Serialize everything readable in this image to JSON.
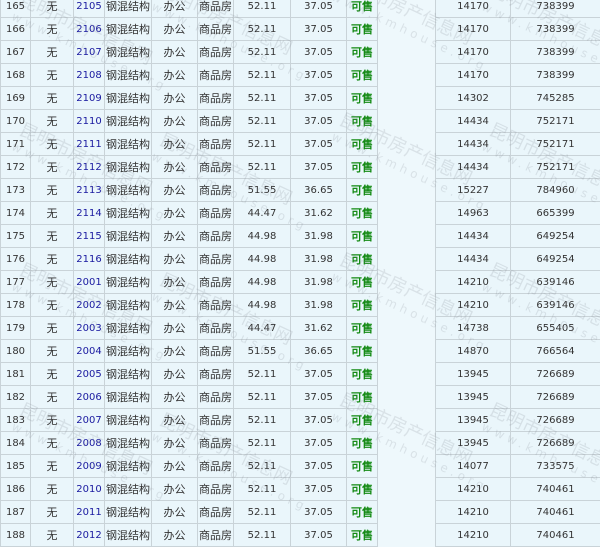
{
  "watermark": {
    "line1": "昆明市房产信息网",
    "line2": "www.kmhouse.org"
  },
  "rows": [
    {
      "no": "165",
      "floor": "无",
      "room": "2105",
      "structure": "钢混结构",
      "usage": "办公",
      "type": "商品房",
      "area": "52.11",
      "inner_area": "37.05",
      "status": "可售",
      "unit_price": "14170",
      "total": "738399"
    },
    {
      "no": "166",
      "floor": "无",
      "room": "2106",
      "structure": "钢混结构",
      "usage": "办公",
      "type": "商品房",
      "area": "52.11",
      "inner_area": "37.05",
      "status": "可售",
      "unit_price": "14170",
      "total": "738399"
    },
    {
      "no": "167",
      "floor": "无",
      "room": "2107",
      "structure": "钢混结构",
      "usage": "办公",
      "type": "商品房",
      "area": "52.11",
      "inner_area": "37.05",
      "status": "可售",
      "unit_price": "14170",
      "total": "738399"
    },
    {
      "no": "168",
      "floor": "无",
      "room": "2108",
      "structure": "钢混结构",
      "usage": "办公",
      "type": "商品房",
      "area": "52.11",
      "inner_area": "37.05",
      "status": "可售",
      "unit_price": "14170",
      "total": "738399"
    },
    {
      "no": "169",
      "floor": "无",
      "room": "2109",
      "structure": "钢混结构",
      "usage": "办公",
      "type": "商品房",
      "area": "52.11",
      "inner_area": "37.05",
      "status": "可售",
      "unit_price": "14302",
      "total": "745285"
    },
    {
      "no": "170",
      "floor": "无",
      "room": "2110",
      "structure": "钢混结构",
      "usage": "办公",
      "type": "商品房",
      "area": "52.11",
      "inner_area": "37.05",
      "status": "可售",
      "unit_price": "14434",
      "total": "752171"
    },
    {
      "no": "171",
      "floor": "无",
      "room": "2111",
      "structure": "钢混结构",
      "usage": "办公",
      "type": "商品房",
      "area": "52.11",
      "inner_area": "37.05",
      "status": "可售",
      "unit_price": "14434",
      "total": "752171"
    },
    {
      "no": "172",
      "floor": "无",
      "room": "2112",
      "structure": "钢混结构",
      "usage": "办公",
      "type": "商品房",
      "area": "52.11",
      "inner_area": "37.05",
      "status": "可售",
      "unit_price": "14434",
      "total": "752171"
    },
    {
      "no": "173",
      "floor": "无",
      "room": "2113",
      "structure": "钢混结构",
      "usage": "办公",
      "type": "商品房",
      "area": "51.55",
      "inner_area": "36.65",
      "status": "可售",
      "unit_price": "15227",
      "total": "784960"
    },
    {
      "no": "174",
      "floor": "无",
      "room": "2114",
      "structure": "钢混结构",
      "usage": "办公",
      "type": "商品房",
      "area": "44.47",
      "inner_area": "31.62",
      "status": "可售",
      "unit_price": "14963",
      "total": "665399"
    },
    {
      "no": "175",
      "floor": "无",
      "room": "2115",
      "structure": "钢混结构",
      "usage": "办公",
      "type": "商品房",
      "area": "44.98",
      "inner_area": "31.98",
      "status": "可售",
      "unit_price": "14434",
      "total": "649254"
    },
    {
      "no": "176",
      "floor": "无",
      "room": "2116",
      "structure": "钢混结构",
      "usage": "办公",
      "type": "商品房",
      "area": "44.98",
      "inner_area": "31.98",
      "status": "可售",
      "unit_price": "14434",
      "total": "649254"
    },
    {
      "no": "177",
      "floor": "无",
      "room": "2001",
      "structure": "钢混结构",
      "usage": "办公",
      "type": "商品房",
      "area": "44.98",
      "inner_area": "31.98",
      "status": "可售",
      "unit_price": "14210",
      "total": "639146"
    },
    {
      "no": "178",
      "floor": "无",
      "room": "2002",
      "structure": "钢混结构",
      "usage": "办公",
      "type": "商品房",
      "area": "44.98",
      "inner_area": "31.98",
      "status": "可售",
      "unit_price": "14210",
      "total": "639146"
    },
    {
      "no": "179",
      "floor": "无",
      "room": "2003",
      "structure": "钢混结构",
      "usage": "办公",
      "type": "商品房",
      "area": "44.47",
      "inner_area": "31.62",
      "status": "可售",
      "unit_price": "14738",
      "total": "655405"
    },
    {
      "no": "180",
      "floor": "无",
      "room": "2004",
      "structure": "钢混结构",
      "usage": "办公",
      "type": "商品房",
      "area": "51.55",
      "inner_area": "36.65",
      "status": "可售",
      "unit_price": "14870",
      "total": "766564"
    },
    {
      "no": "181",
      "floor": "无",
      "room": "2005",
      "structure": "钢混结构",
      "usage": "办公",
      "type": "商品房",
      "area": "52.11",
      "inner_area": "37.05",
      "status": "可售",
      "unit_price": "13945",
      "total": "726689"
    },
    {
      "no": "182",
      "floor": "无",
      "room": "2006",
      "structure": "钢混结构",
      "usage": "办公",
      "type": "商品房",
      "area": "52.11",
      "inner_area": "37.05",
      "status": "可售",
      "unit_price": "13945",
      "total": "726689"
    },
    {
      "no": "183",
      "floor": "无",
      "room": "2007",
      "structure": "钢混结构",
      "usage": "办公",
      "type": "商品房",
      "area": "52.11",
      "inner_area": "37.05",
      "status": "可售",
      "unit_price": "13945",
      "total": "726689"
    },
    {
      "no": "184",
      "floor": "无",
      "room": "2008",
      "structure": "钢混结构",
      "usage": "办公",
      "type": "商品房",
      "area": "52.11",
      "inner_area": "37.05",
      "status": "可售",
      "unit_price": "13945",
      "total": "726689"
    },
    {
      "no": "185",
      "floor": "无",
      "room": "2009",
      "structure": "钢混结构",
      "usage": "办公",
      "type": "商品房",
      "area": "52.11",
      "inner_area": "37.05",
      "status": "可售",
      "unit_price": "14077",
      "total": "733575"
    },
    {
      "no": "186",
      "floor": "无",
      "room": "2010",
      "structure": "钢混结构",
      "usage": "办公",
      "type": "商品房",
      "area": "52.11",
      "inner_area": "37.05",
      "status": "可售",
      "unit_price": "14210",
      "total": "740461"
    },
    {
      "no": "187",
      "floor": "无",
      "room": "2011",
      "structure": "钢混结构",
      "usage": "办公",
      "type": "商品房",
      "area": "52.11",
      "inner_area": "37.05",
      "status": "可售",
      "unit_price": "14210",
      "total": "740461"
    },
    {
      "no": "188",
      "floor": "无",
      "room": "2012",
      "structure": "钢混结构",
      "usage": "办公",
      "type": "商品房",
      "area": "52.11",
      "inner_area": "37.05",
      "status": "可售",
      "unit_price": "14210",
      "total": "740461"
    }
  ],
  "colors": {
    "room_link": "#1a1aa0",
    "status_available": "#138a13",
    "cell_bg": "#eaf6fb",
    "border": "#c9d3d8"
  }
}
